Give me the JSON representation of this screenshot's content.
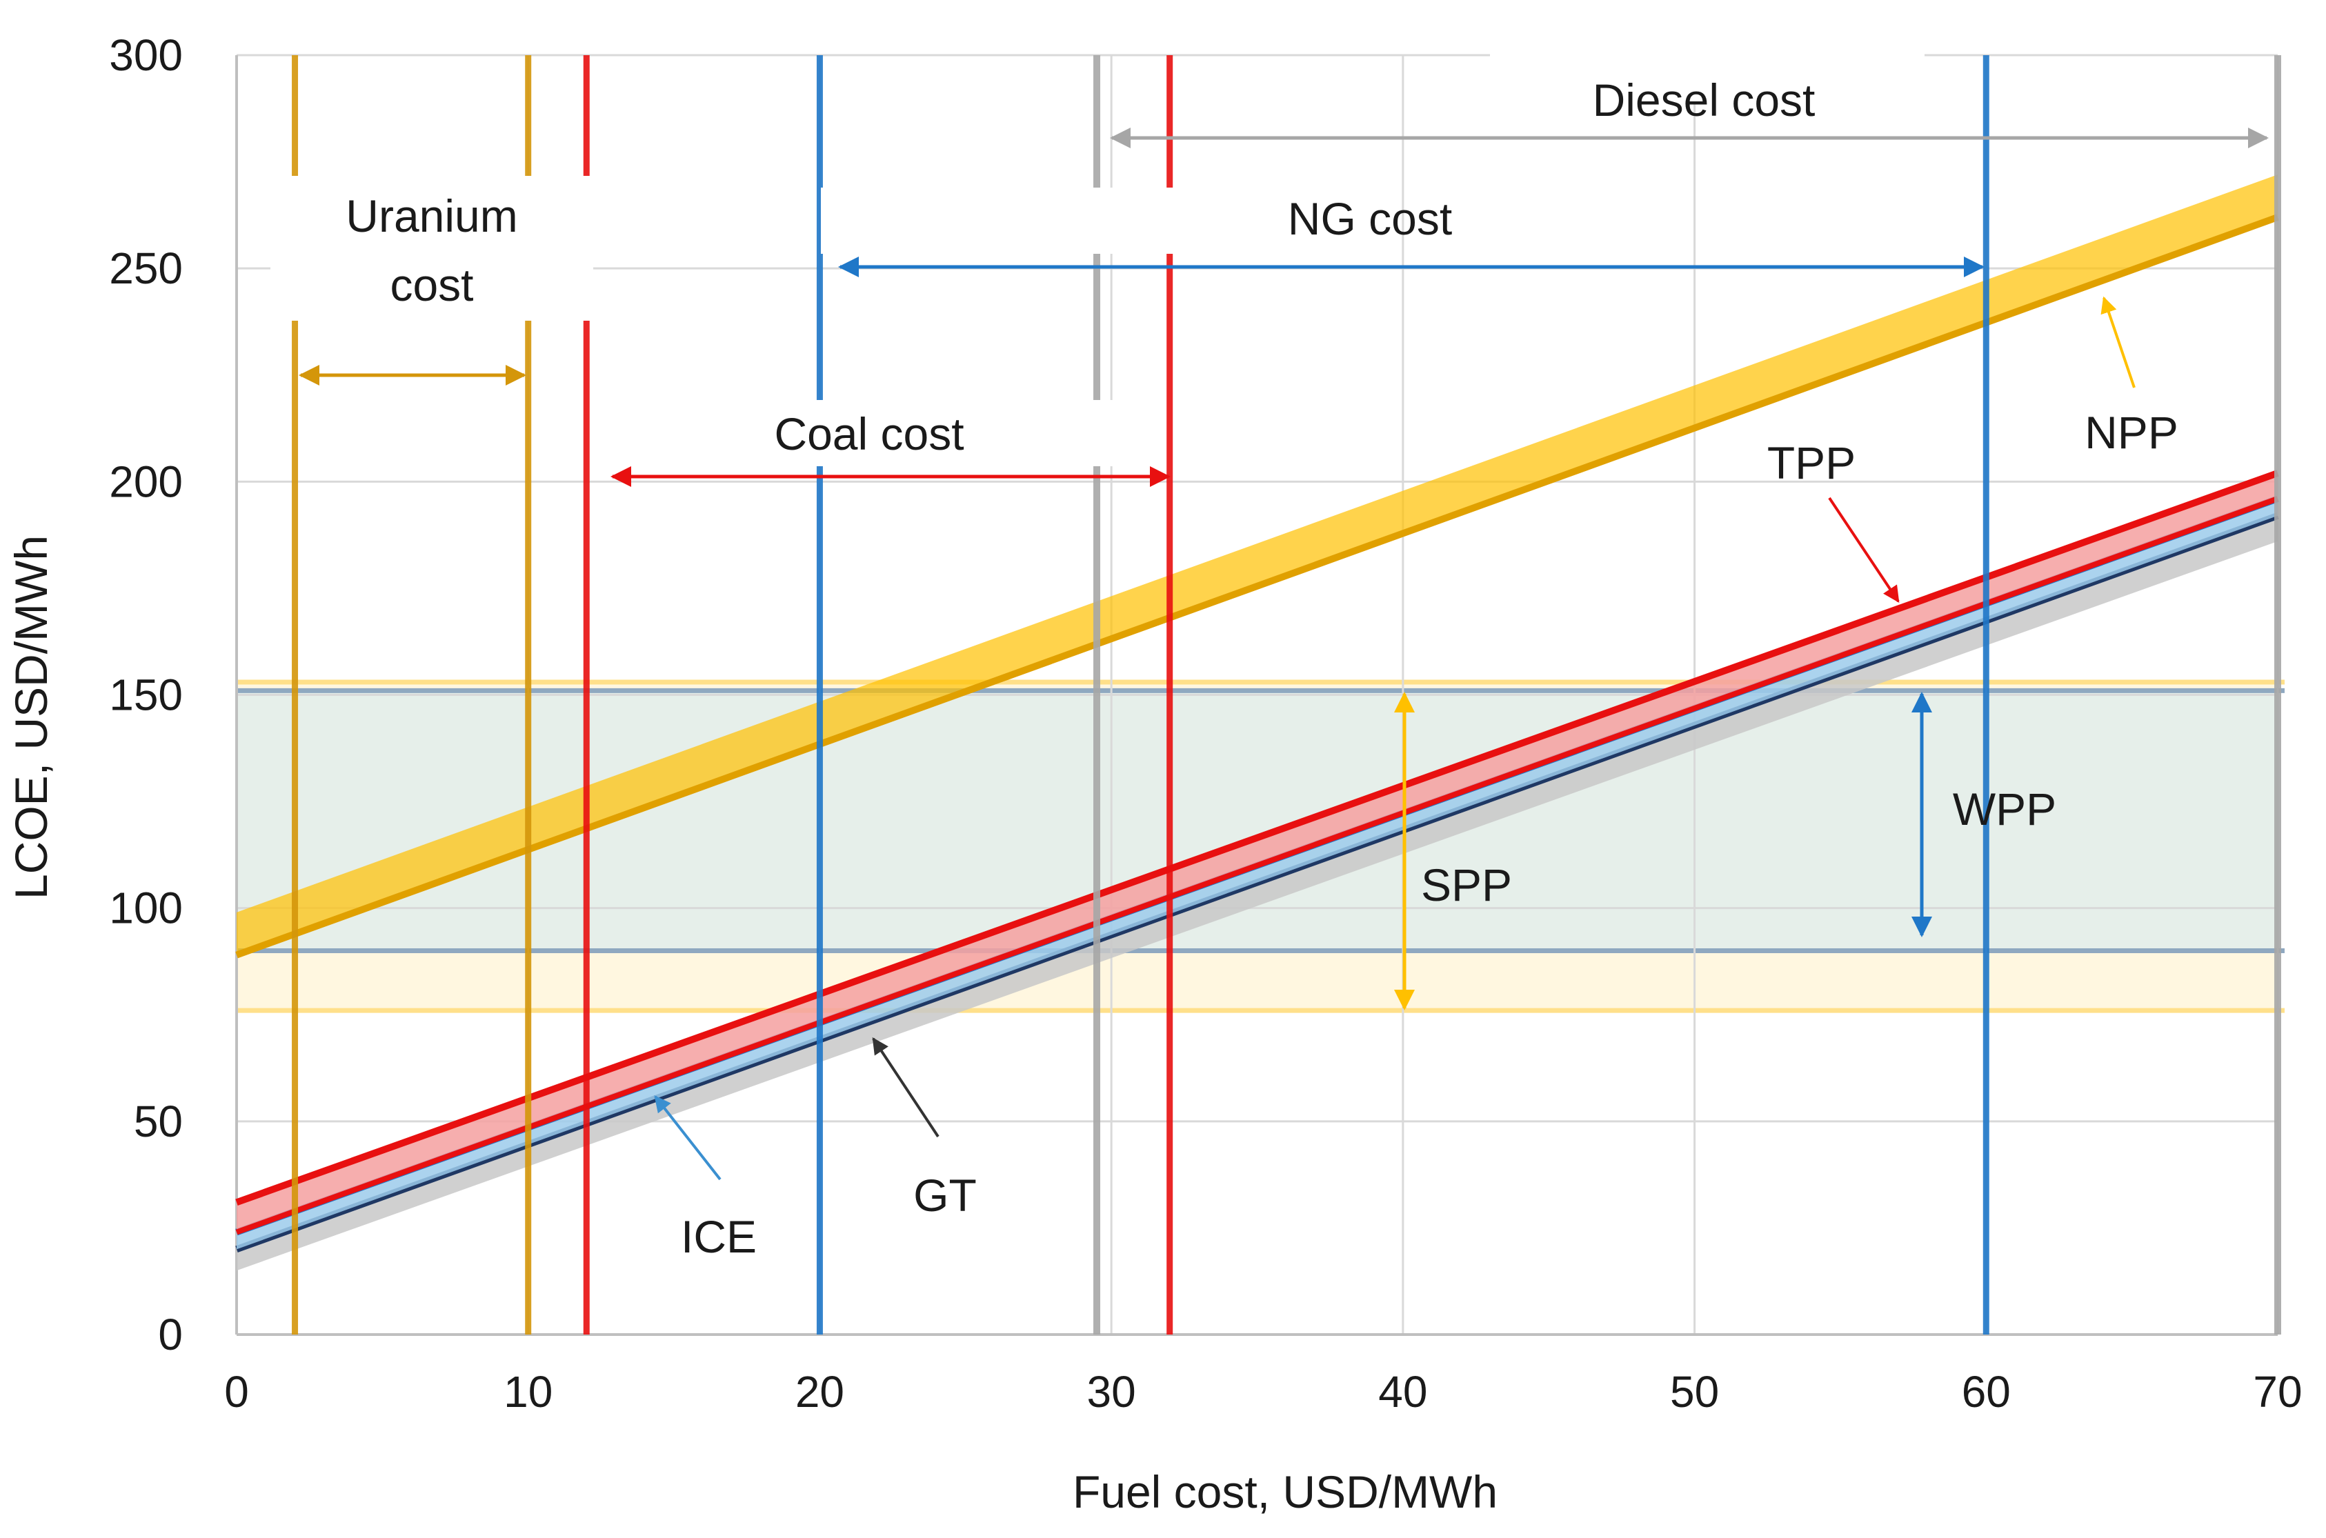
{
  "chart_data": {
    "type": "line",
    "title": "",
    "xlabel": "Fuel cost, USD/MWh",
    "ylabel": "LCOE, USD/MWh",
    "xlim": [
      0,
      70
    ],
    "ylim": [
      0,
      300
    ],
    "xticks": [
      0,
      10,
      20,
      30,
      40,
      50,
      60,
      70
    ],
    "yticks": [
      0,
      50,
      100,
      150,
      200,
      250,
      300
    ],
    "grid": true,
    "colors": {
      "npp": "#ffc000",
      "npp_dark": "#e0a000",
      "tpp": "#e81010",
      "tpp_light": "#f4a0a0",
      "ice": "#1f77c8",
      "ice_light": "#9ccbeb",
      "gt": "#1f3864",
      "gt_light": "#c8c8c8",
      "uranium": "#d4960a",
      "coal": "#e81010",
      "ng": "#1f77c8",
      "diesel": "#a6a6a6",
      "wpp_band": "#e6efea",
      "wpp_line": "#8fa8c0",
      "spp_band": "#fff7e0",
      "spp_line": "#ffe08a"
    },
    "series": [
      {
        "name": "NPP",
        "band": {
          "lower": [
            [
              0,
              89
            ],
            [
              70,
              262
            ]
          ],
          "upper": [
            [
              0,
              99
            ],
            [
              70,
              272
            ]
          ]
        }
      },
      {
        "name": "TPP",
        "band": {
          "lower": [
            [
              0,
              24
            ],
            [
              70,
              196
            ]
          ],
          "upper": [
            [
              0,
              31
            ],
            [
              70,
              202
            ]
          ]
        }
      },
      {
        "name": "ICE",
        "band": {
          "lower": [
            [
              0,
              20
            ],
            [
              70,
              192
            ]
          ],
          "upper": [
            [
              0,
              24
            ],
            [
              70,
              196
            ]
          ]
        }
      },
      {
        "name": "GT",
        "band": {
          "lower": [
            [
              0,
              15
            ],
            [
              70,
              186
            ]
          ],
          "upper": [
            [
              0,
              20
            ],
            [
              70,
              192
            ]
          ]
        }
      }
    ],
    "horizontal_bands": [
      {
        "name": "WPP",
        "low": 90,
        "high": 151
      },
      {
        "name": "SPP",
        "low": 76,
        "high": 153
      }
    ],
    "fuel_cost_ranges": [
      {
        "name": "Uranium cost",
        "lines": [
          2,
          10
        ]
      },
      {
        "name": "Coal cost",
        "lines": [
          12,
          32
        ]
      },
      {
        "name": "NG cost",
        "lines": [
          20,
          60
        ]
      },
      {
        "name": "Diesel cost",
        "lines": [
          29.5,
          70
        ]
      }
    ],
    "annotations": {
      "uranium_line1": "Uranium",
      "uranium_line2": "cost",
      "coal": "Coal cost",
      "ng": "NG cost",
      "diesel": "Diesel cost",
      "npp": "NPP",
      "tpp": "TPP",
      "ice": "ICE",
      "gt": "GT",
      "wpp": "WPP",
      "spp": "SPP"
    }
  }
}
